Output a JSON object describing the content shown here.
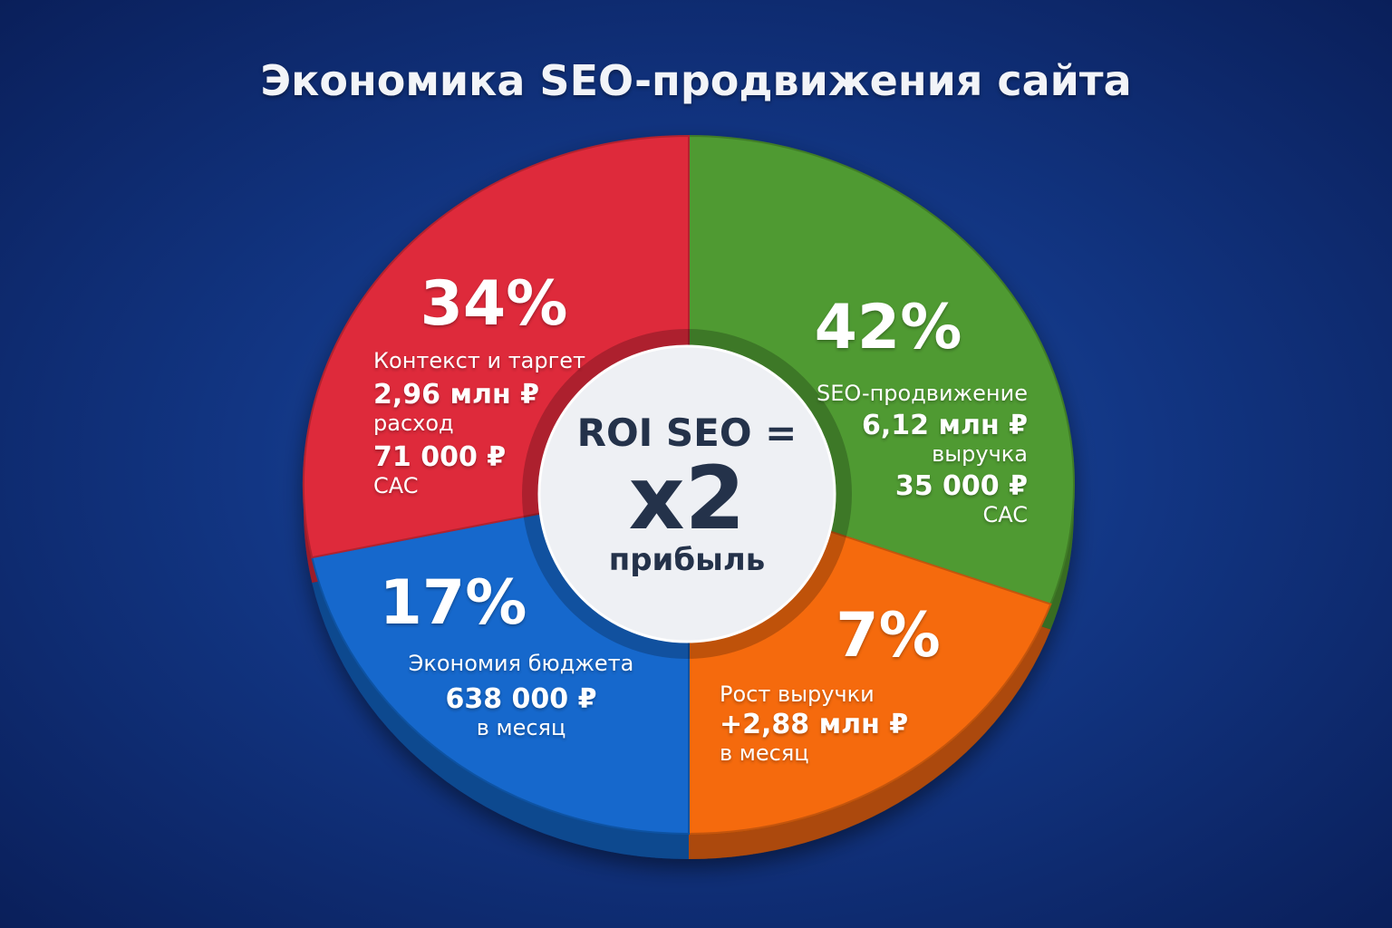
{
  "title": "Экономика SEO-продвижения сайта",
  "chart_data": {
    "type": "pie",
    "style": "donut-3d",
    "title": "Экономика SEO-продвижения сайта",
    "slices": [
      {
        "key": "seo",
        "percent": 42,
        "label": "42%",
        "name": "SEO-продвижение",
        "value": "6,12 млн ₽",
        "value_note": "выручка",
        "cac": "35 000 ₽",
        "cac_label": "CAC",
        "color": "#4f9a32"
      },
      {
        "key": "growth",
        "percent": 7,
        "label": "7%",
        "name": "Рост выручки",
        "value": "+2,88 млн ₽",
        "value_note": "в месяц",
        "color": "#f56a0a"
      },
      {
        "key": "savings",
        "percent": 17,
        "label": "17%",
        "name": "Экономия бюджета",
        "value": "638 000 ₽",
        "value_note": "в месяц",
        "color": "#1568cc"
      },
      {
        "key": "context",
        "percent": 34,
        "label": "34%",
        "name": "Контекст и таргет",
        "value": "2,96 млн ₽",
        "value_note": "расход",
        "cac": "71 000 ₽",
        "cac_label": "CAC",
        "color": "#de2a3a"
      }
    ],
    "center": {
      "line1": "ROI SEO =",
      "line2": "x2",
      "line3": "прибыль"
    }
  }
}
